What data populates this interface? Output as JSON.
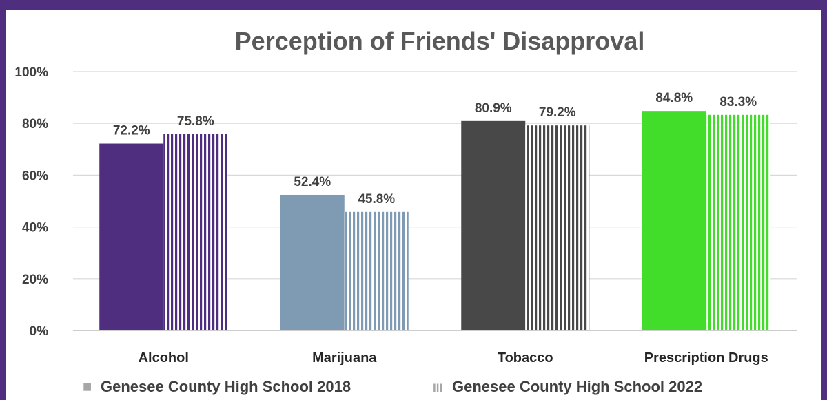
{
  "chart_data": {
    "type": "bar",
    "title": "Perception of Friends' Disapproval",
    "categories": [
      "Alcohol",
      "Marijuana",
      "Tobacco",
      "Prescription Drugs"
    ],
    "series": [
      {
        "name": "Genesee County High School 2018",
        "values": [
          72.2,
          52.4,
          80.9,
          84.8
        ],
        "labels": [
          "72.2%",
          "52.4%",
          "80.9%",
          "84.8%"
        ],
        "pattern": "solid"
      },
      {
        "name": "Genesee County High School 2022",
        "values": [
          75.8,
          45.8,
          79.2,
          83.3
        ],
        "labels": [
          "75.8%",
          "45.8%",
          "79.2%",
          "83.3%"
        ],
        "pattern": "vertical-stripes"
      }
    ],
    "category_colors": [
      "#4f2d7f",
      "#7f9bb3",
      "#484848",
      "#42dd2a"
    ],
    "ylim": [
      0,
      100
    ],
    "yticks": [
      "0%",
      "20%",
      "40%",
      "60%",
      "80%",
      "100%"
    ],
    "grid": true,
    "legend_position": "bottom",
    "legend_symbols": [
      "■",
      "III"
    ],
    "legend_symbol_color": "#a6a6a6"
  },
  "colors": {
    "border": "#4f2d7f",
    "background": "#ffffff",
    "gridline": "#d9d9d9"
  }
}
